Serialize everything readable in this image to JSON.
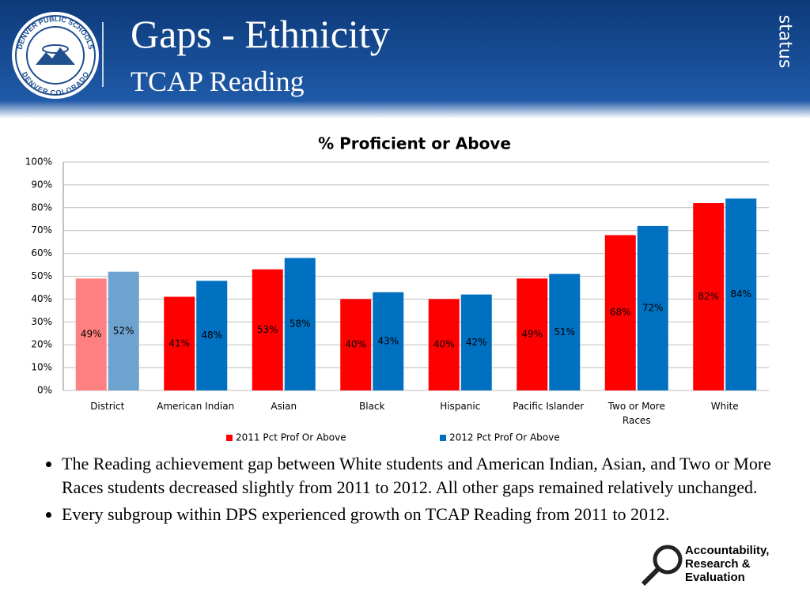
{
  "header": {
    "title": "Gaps - Ethnicity",
    "subtitle": "TCAP Reading",
    "status": "status",
    "logo": {
      "top": "DENVER PUBLIC SCHOOLS",
      "bottom": "DENVER COLORADO"
    }
  },
  "chart_data": {
    "type": "bar",
    "title": "% Proficient or Above",
    "categories": [
      "District",
      "American Indian",
      "Asian",
      "Black",
      "Hispanic",
      "Pacific Islander",
      "Two or More Races",
      "White"
    ],
    "series": [
      {
        "name": "2011 Pct Prof Or Above",
        "color": "#ff0000",
        "colors": [
          "#ff8080",
          "#ff0000",
          "#ff0000",
          "#ff0000",
          "#ff0000",
          "#ff0000",
          "#ff0000",
          "#ff0000"
        ],
        "values": [
          49,
          41,
          53,
          40,
          40,
          49,
          68,
          82
        ],
        "value_labels": [
          "49%",
          "41%",
          "53%",
          "40%",
          "40%",
          "49%",
          "68%",
          "82%"
        ]
      },
      {
        "name": "2012 Pct Prof Or Above",
        "color": "#0070c0",
        "colors": [
          "#6fa3cf",
          "#0070c0",
          "#0070c0",
          "#0070c0",
          "#0070c0",
          "#0070c0",
          "#0070c0",
          "#0070c0"
        ],
        "values": [
          52,
          48,
          58,
          43,
          42,
          51,
          72,
          84
        ],
        "value_labels": [
          "52%",
          "48%",
          "58%",
          "43%",
          "42%",
          "51%",
          "72%",
          "84%"
        ]
      }
    ],
    "ylim": [
      0,
      100
    ],
    "yticks": [
      {
        "value": 0,
        "label": "0%"
      },
      {
        "value": 10,
        "label": "10%"
      },
      {
        "value": 20,
        "label": "20%"
      },
      {
        "value": 30,
        "label": "30%"
      },
      {
        "value": 40,
        "label": "40%"
      },
      {
        "value": 50,
        "label": "50%"
      },
      {
        "value": 60,
        "label": "60%"
      },
      {
        "value": 70,
        "label": "70%"
      },
      {
        "value": 80,
        "label": "80%"
      },
      {
        "value": 90,
        "label": "90%"
      },
      {
        "value": 100,
        "label": "100%"
      }
    ],
    "grid": true,
    "legend": "bottom"
  },
  "bullets": [
    "The Reading achievement gap between White students and American Indian, Asian, and Two or More Races students decreased slightly from 2011 to 2012. All other gaps remained relatively unchanged.",
    "Every subgroup within DPS experienced growth on TCAP Reading from 2011 to 2012."
  ],
  "footer": {
    "lines": [
      "Accountability,",
      "Research &",
      "Evaluation"
    ]
  }
}
